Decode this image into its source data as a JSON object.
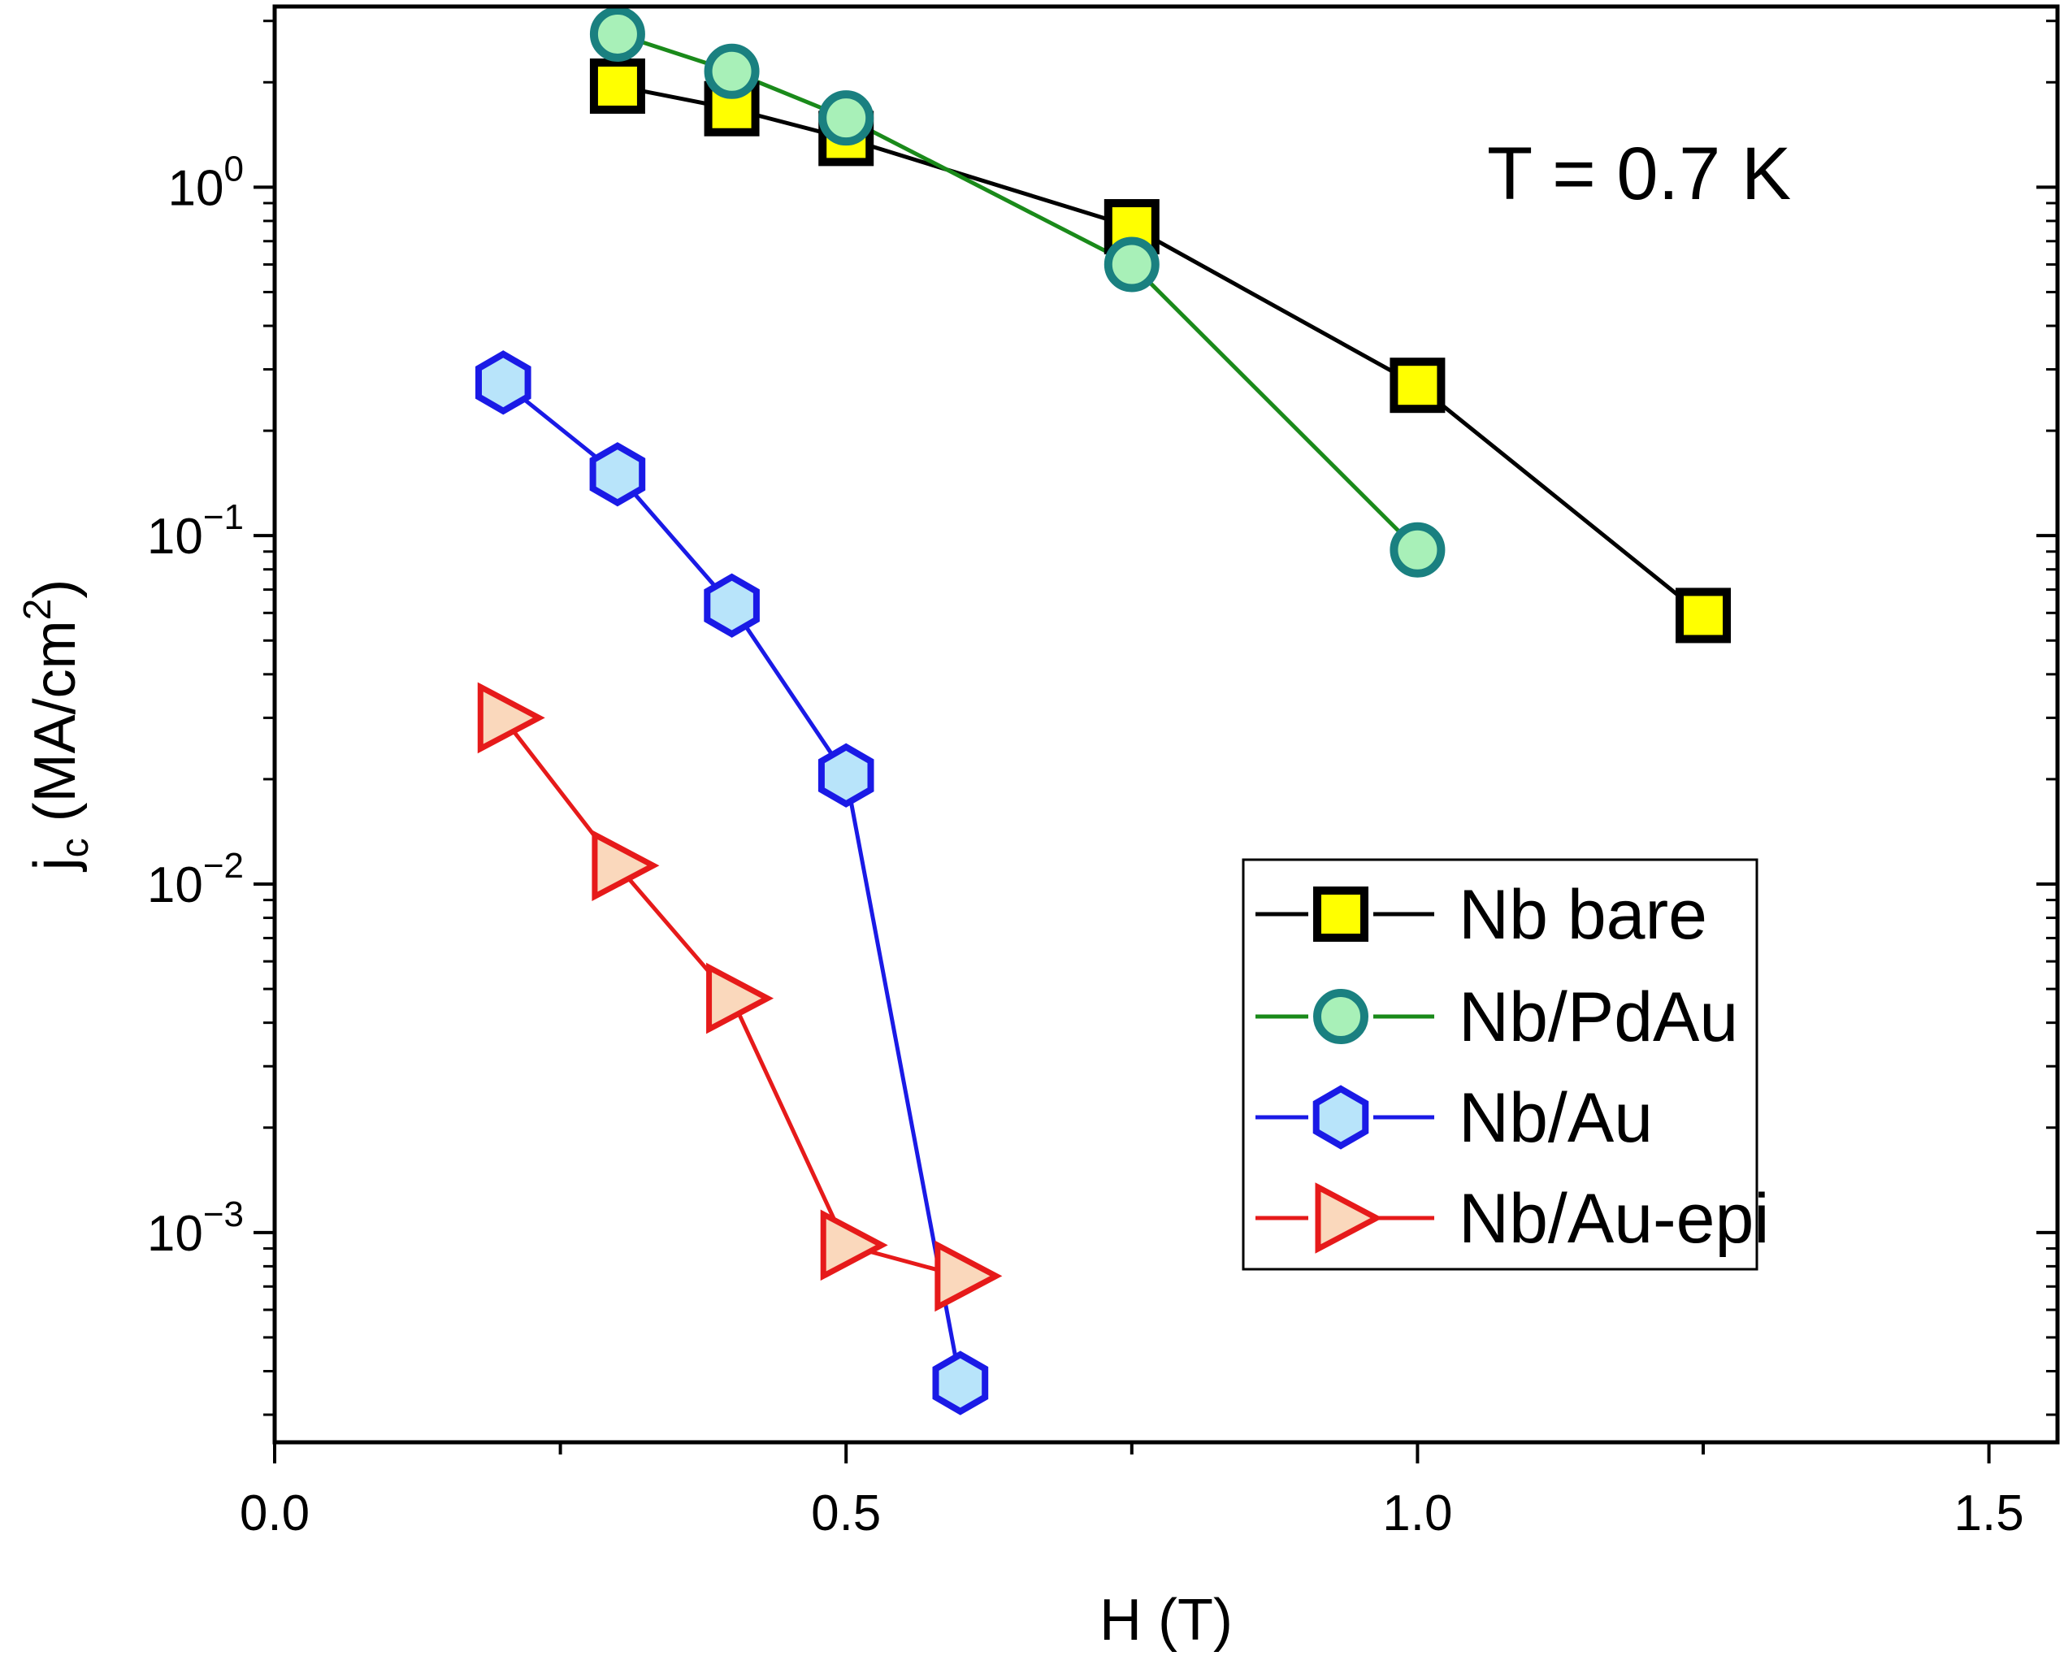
{
  "chart_data": {
    "type": "line",
    "xlabel": "H (T)",
    "ylabel": {
      "main": "j",
      "sub": "c",
      "rest": " (MA/cm",
      "sup": "2",
      "close": ")"
    },
    "annotation": "T = 0.7 K",
    "xlim": [
      0.0,
      1.56
    ],
    "ylim": [
      0.00025,
      3.3
    ],
    "y_scale": "log",
    "x_ticks_major": [
      {
        "value": 0.0,
        "label": "0.0"
      },
      {
        "value": 0.5,
        "label": "0.5"
      },
      {
        "value": 1.0,
        "label": "1.0"
      },
      {
        "value": 1.5,
        "label": "1.5"
      }
    ],
    "x_ticks_minor": [
      0.25,
      0.75,
      1.25
    ],
    "y_ticks": [
      {
        "value": 1,
        "base": "10",
        "exp": "0"
      },
      {
        "value": 0.1,
        "base": "10",
        "exp": "−1"
      },
      {
        "value": 0.01,
        "base": "10",
        "exp": "−2"
      },
      {
        "value": 0.001,
        "base": "10",
        "exp": "−3"
      }
    ],
    "grid": false,
    "legend_position": "bottom-right",
    "series": [
      {
        "name": "Nb bare",
        "marker": "square",
        "line_color": "#000000",
        "marker_fill": "#ffff00",
        "marker_edge": "#000000",
        "x": [
          0.3,
          0.4,
          0.5,
          0.75,
          1.0,
          1.25
        ],
        "y": [
          1.95,
          1.68,
          1.38,
          0.77,
          0.27,
          0.059
        ]
      },
      {
        "name": "Nb/PdAu",
        "marker": "circle",
        "line_color": "#1a8a1a",
        "marker_fill": "#a8f0b8",
        "marker_edge": "#1a8080",
        "x": [
          0.3,
          0.4,
          0.5,
          0.75,
          1.0
        ],
        "y": [
          2.75,
          2.15,
          1.58,
          0.6,
          0.091
        ]
      },
      {
        "name": "Nb/Au",
        "marker": "hexagon",
        "line_color": "#1a1ae6",
        "marker_fill": "#b8e4fa",
        "marker_edge": "#1a1ae6",
        "x": [
          0.2,
          0.3,
          0.4,
          0.5,
          0.6
        ],
        "y": [
          0.275,
          0.15,
          0.063,
          0.0205,
          0.00037
        ]
      },
      {
        "name": "Nb/Au-epi",
        "marker": "triangle-right",
        "line_color": "#e61a1a",
        "marker_fill": "#fad8bc",
        "marker_edge": "#e61a1a",
        "x": [
          0.2,
          0.3,
          0.4,
          0.5,
          0.6
        ],
        "y": [
          0.03,
          0.0113,
          0.0047,
          0.00092,
          0.00075
        ]
      }
    ]
  }
}
